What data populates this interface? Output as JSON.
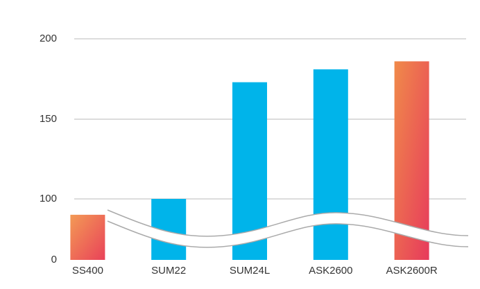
{
  "chart_data": {
    "type": "bar",
    "categories": [
      "SS400",
      "SUM22",
      "SUM24L",
      "ASK2600",
      "ASK2600R"
    ],
    "values": [
      74,
      100,
      173,
      181,
      186
    ],
    "colors": [
      [
        "#f39a55",
        "#e94259"
      ],
      "#00b4ea",
      "#00b4ea",
      "#00b4ea",
      [
        "#f08a4a",
        "#e73a5c"
      ]
    ],
    "ylim": [
      0,
      200
    ],
    "yticks": [
      0,
      100,
      150,
      200
    ],
    "grid": true
  }
}
